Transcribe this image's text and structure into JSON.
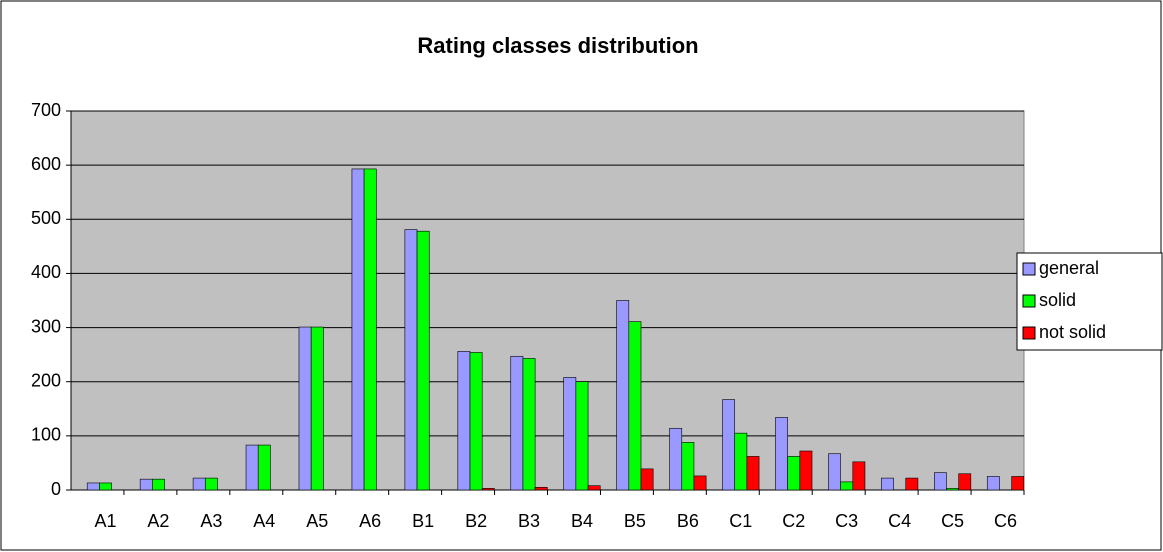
{
  "chart_data": {
    "type": "bar",
    "title": "Rating classes distribution",
    "categories": [
      "A1",
      "A2",
      "A3",
      "A4",
      "A5",
      "A6",
      "B1",
      "B2",
      "B3",
      "B4",
      "B5",
      "B6",
      "C1",
      "C2",
      "C3",
      "C4",
      "C5",
      "C6"
    ],
    "series": [
      {
        "name": "general",
        "color": "#9999ff",
        "values": [
          13,
          20,
          22,
          83,
          301,
          593,
          481,
          256,
          247,
          208,
          350,
          114,
          167,
          134,
          67,
          22,
          32,
          25
        ]
      },
      {
        "name": "solid",
        "color": "#00ff00",
        "values": [
          13,
          20,
          22,
          83,
          301,
          593,
          478,
          254,
          243,
          200,
          311,
          88,
          105,
          62,
          15,
          0,
          3,
          0
        ]
      },
      {
        "name": "not solid",
        "color": "#ff0000",
        "values": [
          0,
          0,
          0,
          0,
          0,
          0,
          0,
          3,
          5,
          8,
          39,
          26,
          62,
          72,
          52,
          22,
          30,
          25
        ]
      }
    ],
    "ylim": [
      0,
      700
    ],
    "yticks": [
      0,
      100,
      200,
      300,
      400,
      500,
      600,
      700
    ],
    "grid": true,
    "legend": "right"
  }
}
